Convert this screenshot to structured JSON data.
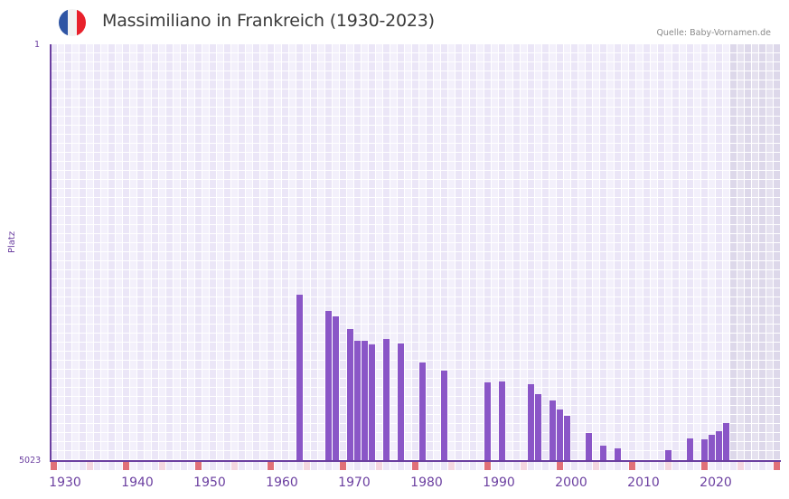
{
  "header": {
    "title": "Massimiliano in Frankreich (1930-2023)",
    "source": "Quelle: Baby-Vornamen.de",
    "flag_colors": [
      "#2f55a4",
      "#f2f2f2",
      "#e8212b"
    ]
  },
  "axes": {
    "y_label": "Platz",
    "y_top": "1",
    "y_bottom": "5023",
    "x_ticks": [
      "1930",
      "1940",
      "1950",
      "1960",
      "1970",
      "1980",
      "1990",
      "2000",
      "2010",
      "2020"
    ]
  },
  "colors": {
    "bar": "#8a56c7",
    "axis": "#6b3fa0",
    "grid_a": "#ebe6f7",
    "grid_b": "#f3f0fb",
    "marker_red": "#e07078",
    "marker_pink": "#f4d6e0"
  },
  "chart_data": {
    "type": "bar",
    "title": "Massimiliano in Frankreich (1930-2023)",
    "xlabel": "",
    "ylabel": "Platz",
    "ylim": [
      5023,
      1
    ],
    "y_inverted": true,
    "x_range": [
      1928,
      2028
    ],
    "grid": true,
    "legend": null,
    "categories": [
      1962,
      1966,
      1967,
      1969,
      1970,
      1971,
      1972,
      1974,
      1976,
      1979,
      1982,
      1988,
      1990,
      1994,
      1995,
      1997,
      1998,
      1999,
      2002,
      2004,
      2006,
      2013,
      2016,
      2018,
      2019,
      2020,
      2021
    ],
    "values": [
      3025,
      3222,
      3287,
      3440,
      3582,
      3582,
      3626,
      3560,
      3615,
      3844,
      3942,
      4084,
      4073,
      4106,
      4226,
      4302,
      4412,
      4488,
      4695,
      4848,
      4881,
      4903,
      4761,
      4772,
      4717,
      4674,
      4575
    ],
    "annotation": "Quelle: Baby-Vornamen.de"
  }
}
